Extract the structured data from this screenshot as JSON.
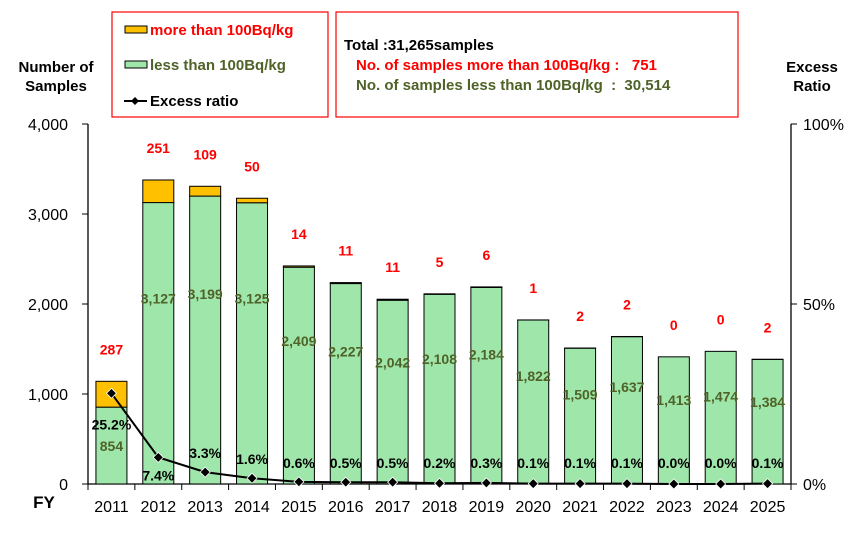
{
  "chart_data": {
    "type": "bar",
    "stacked": true,
    "categories": [
      "2011",
      "2012",
      "2013",
      "2014",
      "2015",
      "2016",
      "2017",
      "2018",
      "2019",
      "2020",
      "2021",
      "2022",
      "2023",
      "2024",
      "2025"
    ],
    "series": [
      {
        "name": "less than 100Bq/kg",
        "color": "#9FE6AA",
        "label_color": "#4F6228",
        "values": [
          854,
          3127,
          3199,
          3125,
          2409,
          2227,
          2042,
          2108,
          2184,
          1822,
          1509,
          1637,
          1413,
          1474,
          1384
        ],
        "labels": [
          "854",
          "3,127",
          "3,199",
          "3,125",
          "2,409",
          "2,227",
          "2,042",
          "2,108",
          "2,184",
          "1,822",
          "1,509",
          "1,637",
          "1,413",
          "1,474",
          "1,384"
        ]
      },
      {
        "name": "more than 100Bq/kg",
        "color": "#FFC000",
        "label_color": "#FF0000",
        "values": [
          287,
          251,
          109,
          50,
          14,
          11,
          11,
          5,
          6,
          1,
          2,
          2,
          0,
          0,
          2
        ],
        "labels": [
          "287",
          "251",
          "109",
          "50",
          "14",
          "11",
          "11",
          "5",
          "6",
          "1",
          "2",
          "2",
          "0",
          "0",
          "2"
        ]
      }
    ],
    "line_series": {
      "name": "Excess ratio",
      "axis": "right",
      "values": [
        25.2,
        7.4,
        3.3,
        1.6,
        0.6,
        0.5,
        0.5,
        0.2,
        0.3,
        0.1,
        0.1,
        0.1,
        0.0,
        0.0,
        0.1
      ],
      "labels": [
        "25.2%",
        "7.4%",
        "3.3%",
        "1.6%",
        "0.6%",
        "0.5%",
        "0.5%",
        "0.2%",
        "0.3%",
        "0.1%",
        "0.1%",
        "0.1%",
        "0.0%",
        "0.0%",
        "0.1%"
      ]
    },
    "xlabel": "FY",
    "ylabel": [
      "Number of",
      "Samples"
    ],
    "ylabel_right": [
      "Excess",
      "Ratio"
    ],
    "ylim": [
      0,
      4000
    ],
    "yticks": [
      "0",
      "1,000",
      "2,000",
      "3,000",
      "4,000"
    ],
    "ylim_right": [
      0,
      100
    ],
    "yticks_right": [
      "0%",
      "50%",
      "100%"
    ],
    "legend": {
      "placement": "top-left",
      "items": [
        "more than 100Bq/kg",
        "less than 100Bq/kg",
        "Excess ratio"
      ]
    },
    "summary": {
      "total": "Total :31,265samples",
      "more": "No. of samples more than 100Bq/kg :   751",
      "less": "No. of samples less than 100Bq/kg  :  30,514"
    }
  }
}
